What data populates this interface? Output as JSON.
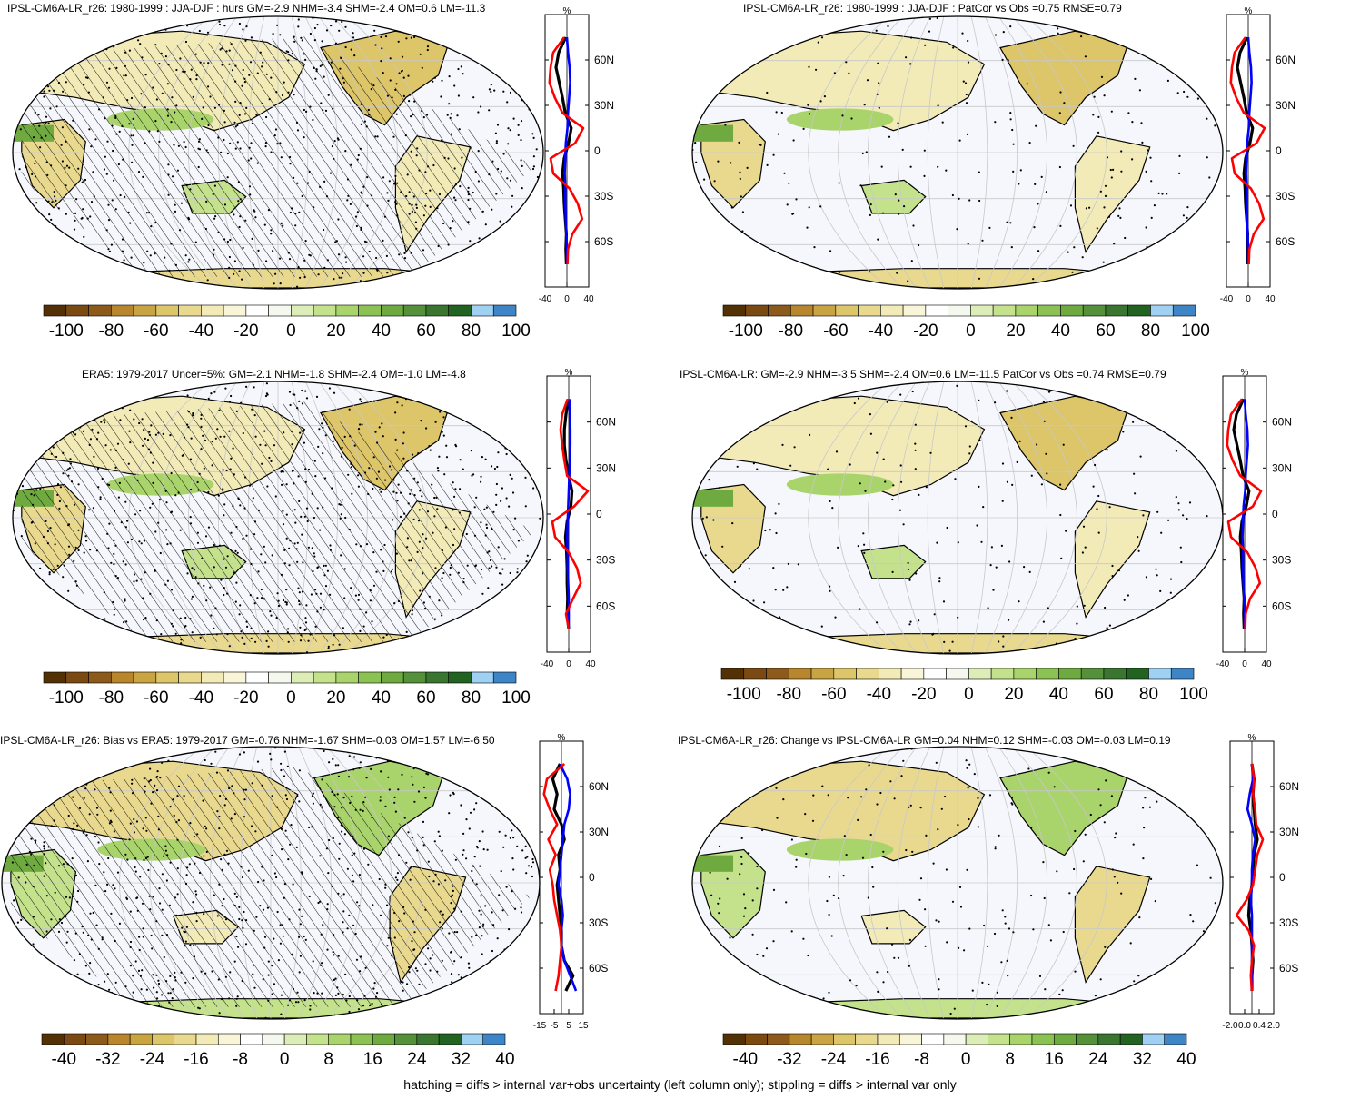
{
  "footer": "hatching = diffs > internal var+obs uncertainty (left column only); stippling = diffs > internal var only",
  "chart_data": [
    {
      "type": "heatmap",
      "title": "IPSL-CM6A-LR_r26: 1980-1999 : JJA-DJF : hurs GM=-2.9 NHM=-3.4 SHM=-2.4 OM=0.6 LM=-11.3",
      "colorbar_ticks": [
        "-100",
        "-80",
        "-60",
        "-40",
        "-20",
        "0",
        "20",
        "40",
        "60",
        "80",
        "100"
      ],
      "zonal": {
        "unit": "%",
        "lat_ticks": [
          "60N",
          "30N",
          "0",
          "30S",
          "60S"
        ],
        "x_ticks": [
          "-40",
          "0",
          "40"
        ],
        "xlim": [
          -40,
          40
        ],
        "series": [
          {
            "color": "#000000",
            "lat": [
              75,
              65,
              55,
              45,
              35,
              25,
              15,
              5,
              -5,
              -15,
              -25,
              -35,
              -45,
              -55,
              -65,
              -75
            ],
            "values": [
              -2,
              -15,
              -20,
              -14,
              -8,
              -3,
              8,
              3,
              -5,
              -8,
              -6,
              -5,
              -3,
              -1,
              -2,
              -1
            ]
          },
          {
            "color": "#0000ff",
            "lat": [
              75,
              65,
              55,
              45,
              35,
              25,
              15,
              5,
              -5,
              -15,
              -25,
              -35,
              -45,
              -55,
              -65,
              -75
            ],
            "values": [
              0,
              2,
              5,
              6,
              4,
              2,
              1,
              -2,
              -3,
              -4,
              -3,
              -3,
              -2,
              -1,
              0,
              0
            ]
          },
          {
            "color": "#ff0000",
            "lat": [
              75,
              65,
              55,
              45,
              35,
              25,
              15,
              5,
              -5,
              -15,
              -25,
              -35,
              -45,
              -55,
              -65,
              -75
            ],
            "values": [
              -5,
              -25,
              -30,
              -32,
              -22,
              -8,
              30,
              15,
              -30,
              -25,
              5,
              20,
              28,
              10,
              2,
              1
            ]
          }
        ]
      }
    },
    {
      "type": "heatmap",
      "title": "IPSL-CM6A-LR_r26: 1980-1999 : JJA-DJF : PatCor vs Obs =0.75 RMSE=0.79",
      "colorbar_ticks": [
        "-100",
        "-80",
        "-60",
        "-40",
        "-20",
        "0",
        "20",
        "40",
        "60",
        "80",
        "100"
      ],
      "zonal": {
        "unit": "%",
        "lat_ticks": [
          "60N",
          "30N",
          "0",
          "30S",
          "60S"
        ],
        "x_ticks": [
          "-40",
          "0",
          "40"
        ],
        "xlim": [
          -40,
          40
        ],
        "series": [
          {
            "color": "#000000",
            "lat": [
              75,
              65,
              55,
              45,
              35,
              25,
              15,
              5,
              -5,
              -15,
              -25,
              -35,
              -45,
              -55,
              -65,
              -75
            ],
            "values": [
              -2,
              -15,
              -20,
              -14,
              -8,
              -3,
              8,
              3,
              -5,
              -8,
              -6,
              -5,
              -3,
              -1,
              -2,
              -1
            ]
          },
          {
            "color": "#0000ff",
            "lat": [
              75,
              65,
              55,
              45,
              35,
              25,
              15,
              5,
              -5,
              -15,
              -25,
              -35,
              -45,
              -55,
              -65,
              -75
            ],
            "values": [
              0,
              2,
              5,
              6,
              4,
              2,
              1,
              -2,
              -3,
              -4,
              -3,
              -3,
              -2,
              -1,
              0,
              0
            ]
          },
          {
            "color": "#ff0000",
            "lat": [
              75,
              65,
              55,
              45,
              35,
              25,
              15,
              5,
              -5,
              -15,
              -25,
              -35,
              -45,
              -55,
              -65,
              -75
            ],
            "values": [
              -5,
              -25,
              -30,
              -32,
              -22,
              -8,
              30,
              15,
              -30,
              -25,
              5,
              20,
              28,
              10,
              2,
              1
            ]
          }
        ]
      }
    },
    {
      "type": "heatmap",
      "title": "ERA5: 1979-2017 Uncer=5%: GM=-2.1 NHM=-1.8 SHM=-2.4 OM=-1.0 LM=-4.8",
      "colorbar_ticks": [
        "-100",
        "-80",
        "-60",
        "-40",
        "-20",
        "0",
        "20",
        "40",
        "60",
        "80",
        "100"
      ],
      "zonal": {
        "unit": "%",
        "lat_ticks": [
          "60N",
          "30N",
          "0",
          "30S",
          "60S"
        ],
        "x_ticks": [
          "-40",
          "0",
          "40"
        ],
        "xlim": [
          -40,
          40
        ],
        "series": [
          {
            "color": "#000000",
            "lat": [
              75,
              65,
              55,
              45,
              35,
              25,
              15,
              5,
              -5,
              -15,
              -25,
              -35,
              -45,
              -55,
              -65,
              -75
            ],
            "values": [
              -1,
              -5,
              -8,
              -8,
              -5,
              0,
              6,
              4,
              -3,
              -6,
              -4,
              -3,
              -3,
              -2,
              -3,
              0
            ]
          },
          {
            "color": "#0000ff",
            "lat": [
              75,
              65,
              55,
              45,
              35,
              25,
              15,
              5,
              -5,
              -15,
              -25,
              -35,
              -45,
              -55,
              -65,
              -75
            ],
            "values": [
              1,
              2,
              3,
              3,
              2,
              1,
              0,
              -1,
              -2,
              -3,
              -2,
              -2,
              -1,
              0,
              0,
              0
            ]
          },
          {
            "color": "#ff0000",
            "lat": [
              75,
              65,
              55,
              45,
              35,
              25,
              15,
              5,
              -5,
              -15,
              -25,
              -35,
              -45,
              -55,
              -65,
              -75
            ],
            "values": [
              -2,
              -12,
              -15,
              -12,
              -8,
              -3,
              35,
              10,
              -30,
              -25,
              0,
              15,
              22,
              8,
              -5,
              0
            ]
          }
        ]
      }
    },
    {
      "type": "heatmap",
      "title": "IPSL-CM6A-LR: GM=-2.9 NHM=-3.5 SHM=-2.4 OM=0.6 LM=-11.5 PatCor vs Obs =0.74 RMSE=0.79",
      "colorbar_ticks": [
        "-100",
        "-80",
        "-60",
        "-40",
        "-20",
        "0",
        "20",
        "40",
        "60",
        "80",
        "100"
      ],
      "zonal": {
        "unit": "%",
        "lat_ticks": [
          "60N",
          "30N",
          "0",
          "30S",
          "60S"
        ],
        "x_ticks": [
          "-40",
          "0",
          "40"
        ],
        "xlim": [
          -40,
          40
        ],
        "series": [
          {
            "color": "#000000",
            "lat": [
              75,
              65,
              55,
              45,
              35,
              25,
              15,
              5,
              -5,
              -15,
              -25,
              -35,
              -45,
              -55,
              -65,
              -75
            ],
            "values": [
              -2,
              -15,
              -20,
              -14,
              -8,
              -3,
              8,
              3,
              -5,
              -8,
              -6,
              -5,
              -3,
              -1,
              -2,
              -1
            ]
          },
          {
            "color": "#0000ff",
            "lat": [
              75,
              65,
              55,
              45,
              35,
              25,
              15,
              5,
              -5,
              -15,
              -25,
              -35,
              -45,
              -55,
              -65,
              -75
            ],
            "values": [
              0,
              2,
              5,
              6,
              4,
              2,
              1,
              -2,
              -3,
              -4,
              -3,
              -3,
              -2,
              -1,
              0,
              0
            ]
          },
          {
            "color": "#ff0000",
            "lat": [
              75,
              65,
              55,
              45,
              35,
              25,
              15,
              5,
              -5,
              -15,
              -25,
              -35,
              -45,
              -55,
              -65,
              -75
            ],
            "values": [
              -5,
              -25,
              -30,
              -32,
              -22,
              -8,
              30,
              15,
              -30,
              -25,
              5,
              20,
              28,
              10,
              2,
              1
            ]
          }
        ]
      }
    },
    {
      "type": "heatmap",
      "title": "IPSL-CM6A-LR_r26: Bias vs ERA5: 1979-2017 GM=-0.76 NHM=-1.67 SHM=-0.03 OM=1.57 LM=-6.50",
      "colorbar_ticks": [
        "-40",
        "-32",
        "-24",
        "-16",
        "-8",
        "0",
        "8",
        "16",
        "24",
        "32",
        "40"
      ],
      "zonal": {
        "unit": "%",
        "lat_ticks": [
          "60N",
          "30N",
          "0",
          "30S",
          "60S"
        ],
        "x_ticks": [
          "-15",
          "-5",
          "5",
          "15"
        ],
        "xlim": [
          -15,
          15
        ],
        "series": [
          {
            "color": "#000000",
            "lat": [
              75,
              65,
              55,
              45,
              35,
              25,
              15,
              5,
              -5,
              -15,
              -25,
              -35,
              -45,
              -55,
              -65,
              -75
            ],
            "values": [
              -1,
              -6,
              -3,
              -5,
              0,
              2,
              -2,
              -1,
              -3,
              -2,
              -1,
              0,
              0,
              2,
              8,
              3
            ]
          },
          {
            "color": "#0000ff",
            "lat": [
              75,
              65,
              55,
              45,
              35,
              25,
              15,
              5,
              -5,
              -15,
              -25,
              -35,
              -45,
              -55,
              -65,
              -75
            ],
            "values": [
              -1,
              4,
              6,
              5,
              2,
              1,
              0,
              -1,
              -2,
              0,
              1,
              0,
              0,
              2,
              6,
              10
            ]
          },
          {
            "color": "#ff0000",
            "lat": [
              75,
              65,
              55,
              45,
              35,
              25,
              15,
              5,
              -5,
              -15,
              -25,
              -35,
              -45,
              -55,
              -65,
              -75
            ],
            "values": [
              2,
              -10,
              -12,
              -8,
              -3,
              -9,
              -4,
              -8,
              -6,
              -5,
              -3,
              -1,
              0,
              -1,
              -2,
              -4
            ]
          }
        ]
      }
    },
    {
      "type": "heatmap",
      "title": "IPSL-CM6A-LR_r26: Change vs IPSL-CM6A-LR GM=0.04 NHM=0.12 SHM=-0.03 OM=-0.03 LM=0.19",
      "colorbar_ticks": [
        "-40",
        "-32",
        "-24",
        "-16",
        "-8",
        "0",
        "8",
        "16",
        "24",
        "32",
        "40"
      ],
      "zonal": {
        "unit": "%",
        "lat_ticks": [
          "60N",
          "30N",
          "0",
          "30S",
          "60S"
        ],
        "x_ticks": [
          "-2.0",
          "0.0",
          "0.4",
          "2.0"
        ],
        "xlim": [
          -2,
          2
        ],
        "series": [
          {
            "color": "#000000",
            "lat": [
              75,
              65,
              55,
              45,
              35,
              25,
              15,
              5,
              -5,
              -15,
              -25,
              -35,
              -45,
              -55,
              -65,
              -75
            ],
            "values": [
              0,
              0.2,
              0.1,
              0.2,
              0.3,
              0.5,
              0.2,
              0.1,
              0,
              -0.2,
              -0.3,
              -0.1,
              0,
              0.1,
              0,
              0
            ]
          },
          {
            "color": "#0000ff",
            "lat": [
              75,
              65,
              55,
              45,
              35,
              25,
              15,
              5,
              -5,
              -15,
              -25,
              -35,
              -45,
              -55,
              -65,
              -75
            ],
            "values": [
              0,
              0.1,
              -0.2,
              -0.4,
              0,
              0.3,
              0.1,
              0,
              0,
              -0.1,
              0,
              0,
              0,
              0,
              0,
              0
            ]
          },
          {
            "color": "#ff0000",
            "lat": [
              75,
              65,
              55,
              45,
              35,
              25,
              15,
              5,
              -5,
              -15,
              -25,
              -35,
              -45,
              -55,
              -65,
              -75
            ],
            "values": [
              0,
              0.2,
              0.1,
              0.3,
              0.4,
              1.0,
              0.5,
              0.3,
              0.1,
              -0.5,
              -1.4,
              -0.3,
              0.2,
              0,
              -0.1,
              0
            ]
          }
        ]
      }
    }
  ]
}
